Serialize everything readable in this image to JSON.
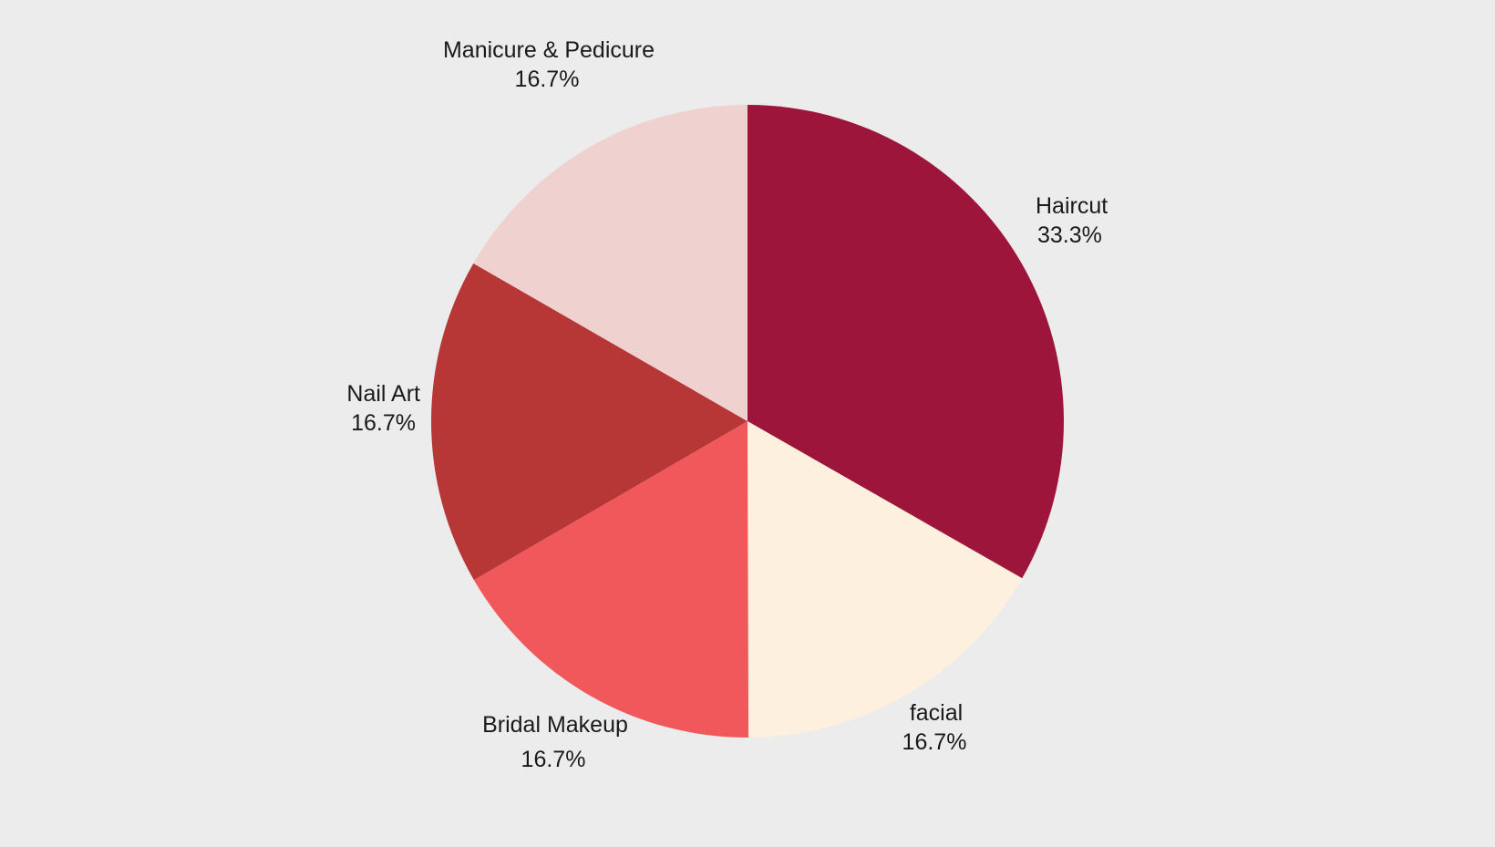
{
  "chart_data": {
    "type": "pie",
    "slices": [
      {
        "label": "Haircut",
        "percent_label": "33.3%",
        "value": 33.3,
        "color": "#9e153b"
      },
      {
        "label": "facial",
        "percent_label": "16.7%",
        "value": 16.7,
        "color": "#fdf0de"
      },
      {
        "label": "Bridal Makeup",
        "percent_label": "16.7%",
        "value": 16.7,
        "color": "#f0585c"
      },
      {
        "label": "Nail Art",
        "percent_label": "16.7%",
        "value": 16.7,
        "color": "#b73636"
      },
      {
        "label": "Manicure & Pedicure",
        "percent_label": "16.7%",
        "value": 16.7,
        "color": "#efd1d0"
      }
    ],
    "start_angle": "12 o'clock",
    "direction": "clockwise",
    "legend": "none"
  }
}
